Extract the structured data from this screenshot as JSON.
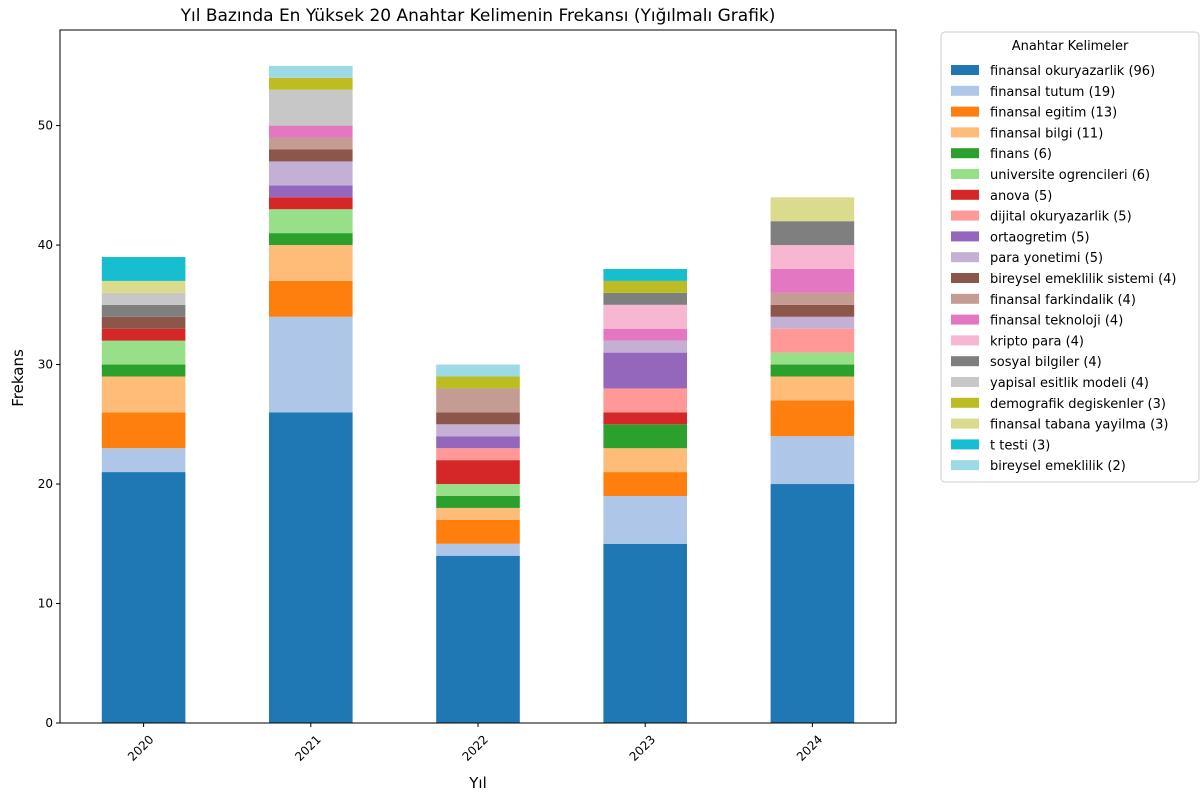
{
  "chart_data": {
    "type": "bar",
    "stacked": true,
    "title": "Yıl Bazında En Yüksek 20 Anahtar Kelimenin Frekansı (Yığılmalı Grafik)",
    "xlabel": "Yıl",
    "ylabel": "Frekans",
    "ylim": [
      0,
      58
    ],
    "yticks": [
      0,
      10,
      20,
      30,
      40,
      50
    ],
    "categories": [
      "2020",
      "2021",
      "2022",
      "2023",
      "2024"
    ],
    "legend_title": "Anahtar Kelimeler",
    "legend_position": "right, outside plot",
    "grid": false,
    "series": [
      {
        "name": "finansal okuryazarlik (96)",
        "color": "#1f77b4",
        "values": [
          21,
          26,
          14,
          15,
          20
        ]
      },
      {
        "name": "finansal tutum (19)",
        "color": "#aec7e8",
        "values": [
          2,
          8,
          1,
          4,
          4
        ]
      },
      {
        "name": "finansal egitim (13)",
        "color": "#ff7f0e",
        "values": [
          3,
          3,
          2,
          2,
          3
        ]
      },
      {
        "name": "finansal bilgi (11)",
        "color": "#ffbb78",
        "values": [
          3,
          3,
          1,
          2,
          2
        ]
      },
      {
        "name": "finans (6)",
        "color": "#2ca02c",
        "values": [
          1,
          1,
          1,
          2,
          1
        ]
      },
      {
        "name": "universite ogrencileri (6)",
        "color": "#98df8a",
        "values": [
          2,
          2,
          1,
          0,
          1
        ]
      },
      {
        "name": "anova (5)",
        "color": "#d62728",
        "values": [
          1,
          1,
          2,
          1,
          0
        ]
      },
      {
        "name": "dijital okuryazarlik (5)",
        "color": "#ff9896",
        "values": [
          0,
          0,
          1,
          2,
          2
        ]
      },
      {
        "name": "ortaogretim (5)",
        "color": "#9467bd",
        "values": [
          0,
          1,
          1,
          3,
          0
        ]
      },
      {
        "name": "para yonetimi (5)",
        "color": "#c5b0d5",
        "values": [
          0,
          2,
          1,
          1,
          1
        ]
      },
      {
        "name": "bireysel emeklilik sistemi (4)",
        "color": "#8c564b",
        "values": [
          1,
          1,
          1,
          0,
          1
        ]
      },
      {
        "name": "finansal farkindalik (4)",
        "color": "#c49c94",
        "values": [
          0,
          1,
          2,
          0,
          1
        ]
      },
      {
        "name": "finansal teknoloji (4)",
        "color": "#e377c2",
        "values": [
          0,
          1,
          0,
          1,
          2
        ]
      },
      {
        "name": "kripto para (4)",
        "color": "#f7b6d2",
        "values": [
          0,
          0,
          0,
          2,
          2
        ]
      },
      {
        "name": "sosyal bilgiler (4)",
        "color": "#7f7f7f",
        "values": [
          1,
          0,
          0,
          1,
          2
        ]
      },
      {
        "name": "yapisal esitlik modeli (4)",
        "color": "#c7c7c7",
        "values": [
          1,
          3,
          0,
          0,
          0
        ]
      },
      {
        "name": "demografik degiskenler (3)",
        "color": "#bcbd22",
        "values": [
          0,
          1,
          1,
          1,
          0
        ]
      },
      {
        "name": "finansal tabana yayilma (3)",
        "color": "#dbdb8d",
        "values": [
          1,
          0,
          0,
          0,
          2
        ]
      },
      {
        "name": "t testi (3)",
        "color": "#17becf",
        "values": [
          2,
          0,
          0,
          1,
          0
        ]
      },
      {
        "name": "bireysel emeklilik (2)",
        "color": "#9edae5",
        "values": [
          0,
          1,
          1,
          0,
          0
        ]
      }
    ]
  }
}
